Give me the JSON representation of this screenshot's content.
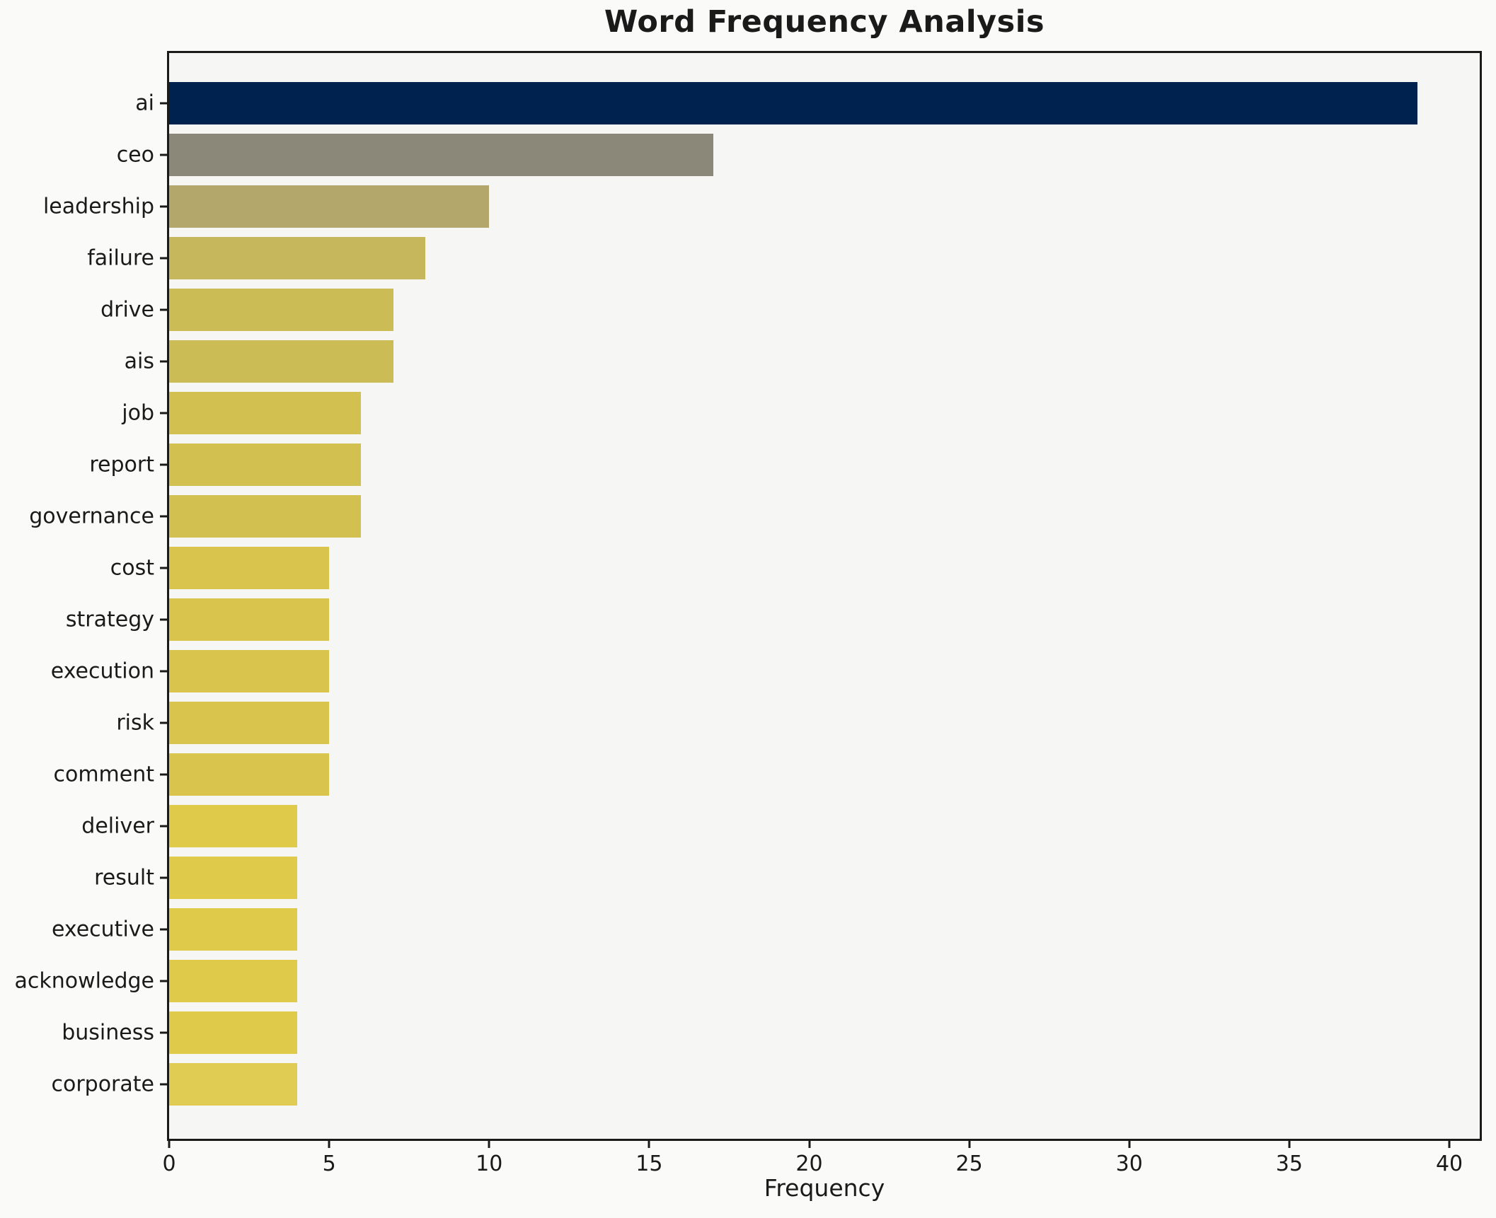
{
  "chart_data": {
    "type": "bar",
    "orientation": "horizontal",
    "title": "Word Frequency Analysis",
    "xlabel": "Frequency",
    "ylabel": "",
    "categories": [
      "ai",
      "ceo",
      "leadership",
      "failure",
      "drive",
      "ais",
      "job",
      "report",
      "governance",
      "cost",
      "strategy",
      "execution",
      "risk",
      "comment",
      "deliver",
      "result",
      "executive",
      "acknowledge",
      "business",
      "corporate"
    ],
    "values": [
      39,
      17,
      10,
      8,
      7,
      7,
      6,
      6,
      6,
      5,
      5,
      5,
      5,
      5,
      4,
      4,
      4,
      4,
      4,
      4
    ],
    "bar_colors": [
      "#00224e",
      "#8b8779",
      "#b3a76b",
      "#c6b75c",
      "#ccbc55",
      "#ccbc55",
      "#d2c051",
      "#d2c051",
      "#d2c051",
      "#d9c54d",
      "#d9c54d",
      "#d9c54d",
      "#d9c54d",
      "#d9c54d",
      "#dfca49",
      "#dfca49",
      "#dfca49",
      "#dfca49",
      "#dfca49",
      "#e0cc52"
    ],
    "xticks": [
      0,
      5,
      10,
      15,
      20,
      25,
      30,
      35,
      40
    ],
    "xlim": [
      0,
      40.95
    ],
    "grid": false,
    "legend_position": "none",
    "colors": {
      "plot_background": "#f6f6f4",
      "figure_background": "#fafaf9",
      "spine": "#1a1a1a",
      "text": "#1a1a1a"
    }
  }
}
